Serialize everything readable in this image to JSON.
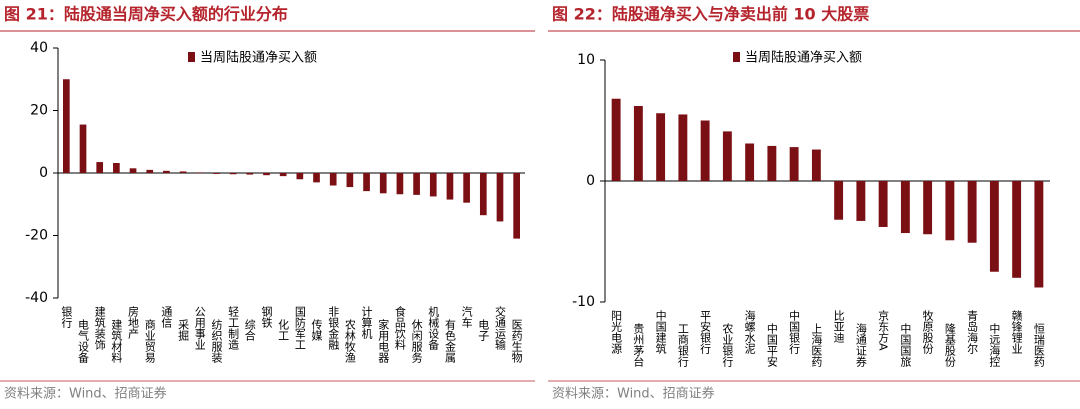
{
  "chart_data": [
    {
      "type": "bar",
      "title": "图 21：陆股通当周净买入额的行业分布",
      "categories": [
        "银行",
        "电气设备",
        "建筑装饰",
        "建筑材料",
        "房地产",
        "商业贸易",
        "通信",
        "采掘",
        "公用事业",
        "纺织服装",
        "轻工制造",
        "综合",
        "钢铁",
        "化工",
        "国防军工",
        "传媒",
        "非银金融",
        "农林牧渔",
        "计算机",
        "家用电器",
        "食品饮料",
        "休闲服务",
        "机械设备",
        "有色金属",
        "汽车",
        "电子",
        "交通运输",
        "医药生物"
      ],
      "series": [
        {
          "name": "当周陆股通净买入额",
          "color": "#7b1014",
          "values": [
            30,
            15.5,
            3.5,
            3.2,
            1.5,
            1,
            0.7,
            0.5,
            0.2,
            -0.3,
            -0.4,
            -0.5,
            -0.7,
            -1,
            -2,
            -3,
            -4,
            -4.5,
            -5.8,
            -6.5,
            -6.8,
            -7,
            -7.5,
            -8.5,
            -9.5,
            -13.5,
            -15.5,
            -21
          ]
        }
      ],
      "ylim": [
        -40,
        40
      ],
      "yticks": [
        -40,
        -20,
        0,
        20,
        40
      ],
      "source": "资料来源：Wind、招商证券"
    },
    {
      "type": "bar",
      "title": "图 22：陆股通净买入与净卖出前 10 大股票",
      "categories": [
        "阳光电源",
        "贵州茅台",
        "中国建筑",
        "工商银行",
        "平安银行",
        "农业银行",
        "海螺水泥",
        "中国平安",
        "中国银行",
        "上海医药",
        "比亚迪",
        "海通证券",
        "京东方A",
        "中国国旅",
        "牧原股份",
        "隆基股份",
        "青岛海尔",
        "中远海控",
        "赣锋锂业",
        "恒瑞医药"
      ],
      "series": [
        {
          "name": "当周陆股通净买入额",
          "color": "#7b1014",
          "values": [
            6.8,
            6.2,
            5.6,
            5.5,
            5.0,
            4.1,
            3.1,
            2.9,
            2.8,
            2.6,
            -3.2,
            -3.3,
            -3.8,
            -4.3,
            -4.4,
            -4.9,
            -5.1,
            -7.5,
            -8.0,
            -8.8
          ]
        }
      ],
      "ylim": [
        -10,
        10
      ],
      "yticks": [
        -10,
        0,
        10
      ],
      "source": "资料来源：Wind、招商证券"
    }
  ]
}
